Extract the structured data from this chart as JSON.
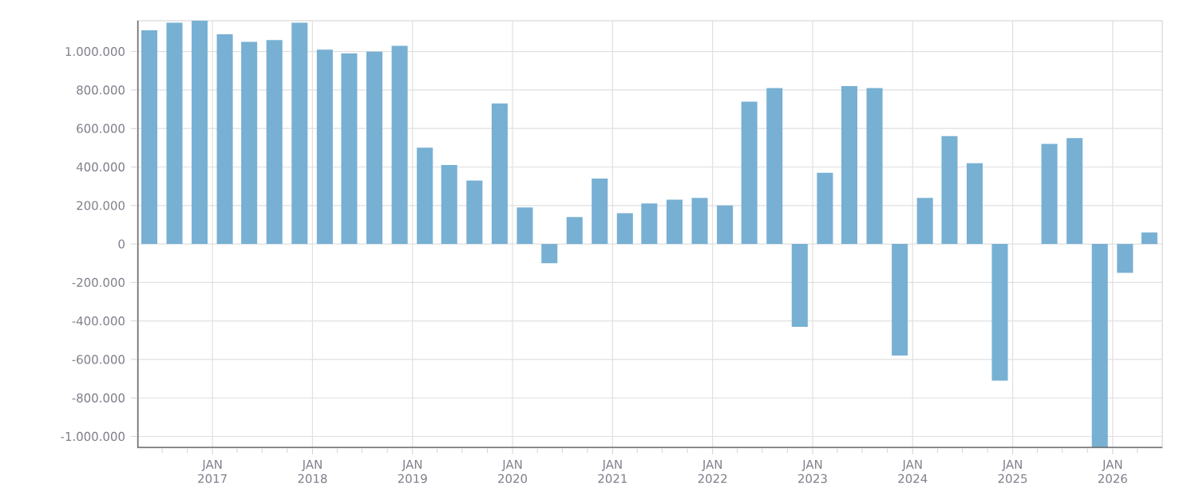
{
  "chart_data": {
    "type": "bar",
    "color": "#77b0d3",
    "x": [
      "2016-05-15",
      "2016-08-15",
      "2016-11-15",
      "2017-02-15",
      "2017-05-15",
      "2017-08-15",
      "2017-11-15",
      "2018-02-15",
      "2018-05-15",
      "2018-08-15",
      "2018-11-15",
      "2019-02-15",
      "2019-05-15",
      "2019-08-15",
      "2019-11-15",
      "2020-02-15",
      "2020-05-15",
      "2020-08-15",
      "2020-11-15",
      "2021-02-15",
      "2021-05-15",
      "2021-08-15",
      "2021-11-15",
      "2022-02-15",
      "2022-05-15",
      "2022-08-15",
      "2022-11-15",
      "2023-02-15",
      "2023-05-15",
      "2023-08-15",
      "2023-11-15",
      "2024-02-15",
      "2024-05-15",
      "2024-08-15",
      "2024-11-15",
      "2025-02-15",
      "2025-05-15",
      "2025-08-15",
      "2025-11-15",
      "2026-02-15",
      "2026-05-15"
    ],
    "values": [
      1110000,
      1150000,
      1160000,
      1090000,
      1050000,
      1060000,
      1150000,
      1010000,
      990000,
      1000000,
      1030000,
      500000,
      410000,
      330000,
      730000,
      190000,
      -100000,
      140000,
      340000,
      160000,
      210000,
      230000,
      240000,
      200000,
      740000,
      810000,
      -430000,
      370000,
      820000,
      810000,
      -580000,
      240000,
      560000,
      420000,
      -710000,
      null,
      520000,
      550000,
      -1060000,
      -150000,
      60000
    ],
    "xlim": [
      "2016-04-01",
      "2026-07-01"
    ],
    "xticks": [
      {
        "value": "2016-07-01",
        "label": null
      },
      {
        "value": "2016-10-01",
        "label": null
      },
      {
        "value": "2017-01-01",
        "label": "JAN 2017"
      },
      {
        "value": "2017-04-01",
        "label": null
      },
      {
        "value": "2017-07-01",
        "label": null
      },
      {
        "value": "2017-10-01",
        "label": null
      },
      {
        "value": "2018-01-01",
        "label": "JAN 2018"
      },
      {
        "value": "2018-04-01",
        "label": null
      },
      {
        "value": "2018-07-01",
        "label": null
      },
      {
        "value": "2018-10-01",
        "label": null
      },
      {
        "value": "2019-01-01",
        "label": "JAN 2019"
      },
      {
        "value": "2019-04-01",
        "label": null
      },
      {
        "value": "2019-07-01",
        "label": null
      },
      {
        "value": "2019-10-01",
        "label": null
      },
      {
        "value": "2020-01-01",
        "label": "JAN 2020"
      },
      {
        "value": "2020-04-01",
        "label": null
      },
      {
        "value": "2020-07-01",
        "label": null
      },
      {
        "value": "2020-10-01",
        "label": null
      },
      {
        "value": "2021-01-01",
        "label": "JAN 2021"
      },
      {
        "value": "2021-04-01",
        "label": null
      },
      {
        "value": "2021-07-01",
        "label": null
      },
      {
        "value": "2021-10-01",
        "label": null
      },
      {
        "value": "2022-01-01",
        "label": "JAN 2022"
      },
      {
        "value": "2022-04-01",
        "label": null
      },
      {
        "value": "2022-07-01",
        "label": null
      },
      {
        "value": "2022-10-01",
        "label": null
      },
      {
        "value": "2023-01-01",
        "label": "JAN 2023"
      },
      {
        "value": "2023-04-01",
        "label": null
      },
      {
        "value": "2023-07-01",
        "label": null
      },
      {
        "value": "2023-10-01",
        "label": null
      },
      {
        "value": "2024-01-01",
        "label": "JAN 2024"
      },
      {
        "value": "2024-04-01",
        "label": null
      },
      {
        "value": "2024-07-01",
        "label": null
      },
      {
        "value": "2024-10-01",
        "label": null
      },
      {
        "value": "2025-01-01",
        "label": "JAN 2025"
      },
      {
        "value": "2025-04-01",
        "label": null
      },
      {
        "value": "2025-07-01",
        "label": null
      },
      {
        "value": "2025-10-01",
        "label": null
      },
      {
        "value": "2026-01-01",
        "label": "JAN 2026"
      },
      {
        "value": "2026-04-01",
        "label": null
      }
    ],
    "ylim": [
      -1060000,
      1160000
    ],
    "yticks": [
      {
        "value": -1000000,
        "label": "-1.000.000"
      },
      {
        "value": -800000,
        "label": "-800.000"
      },
      {
        "value": -600000,
        "label": "-600.000"
      },
      {
        "value": -400000,
        "label": "-400.000"
      },
      {
        "value": -200000,
        "label": "-200.000"
      },
      0,
      {
        "value": 200000,
        "label": "200.000"
      },
      {
        "value": 400000,
        "label": "400.000"
      },
      {
        "value": 600000,
        "label": "600.000"
      },
      {
        "value": 800000,
        "label": "800.000"
      },
      {
        "value": 1000000,
        "label": "1.000.000"
      }
    ],
    "grid": true
  }
}
